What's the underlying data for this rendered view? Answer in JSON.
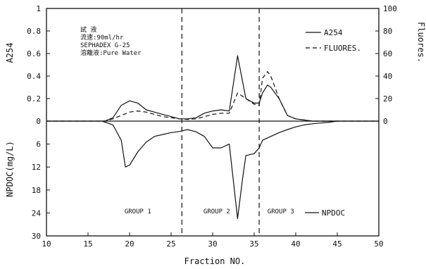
{
  "chart_data": {
    "type": "line",
    "x_label": "Fraction NO.",
    "x_ticks": [
      10,
      15,
      20,
      25,
      30,
      35,
      40,
      45,
      50
    ],
    "x_range": [
      10,
      50
    ],
    "upper": {
      "left_label": "A254",
      "right_label": "Fluores.",
      "left_ticks": [
        "1",
        "0.8",
        "0.6",
        "0.4",
        "0.2",
        "0"
      ],
      "right_ticks": [
        "100",
        "80",
        "60",
        "40",
        "20",
        "0"
      ],
      "left_range": [
        0,
        1
      ],
      "right_range": [
        0,
        100
      ]
    },
    "lower": {
      "left_label": "NPDOC(mg/L)",
      "ticks": [
        "0",
        "6",
        "12",
        "18",
        "24",
        "30"
      ],
      "range": [
        0,
        30
      ]
    },
    "series": [
      {
        "name": "A254",
        "axis": "upper-left",
        "style": "solid",
        "points": [
          [
            10,
            0
          ],
          [
            17,
            0
          ],
          [
            18,
            0.03
          ],
          [
            19,
            0.14
          ],
          [
            20,
            0.18
          ],
          [
            21,
            0.16
          ],
          [
            22,
            0.1
          ],
          [
            23,
            0.08
          ],
          [
            24,
            0.06
          ],
          [
            25,
            0.04
          ],
          [
            26,
            0.02
          ],
          [
            27,
            0.02
          ],
          [
            28,
            0.03
          ],
          [
            29,
            0.07
          ],
          [
            30,
            0.09
          ],
          [
            31,
            0.1
          ],
          [
            32,
            0.09
          ],
          [
            33,
            0.58
          ],
          [
            34,
            0.2
          ],
          [
            35,
            0.16
          ],
          [
            35.6,
            0.16
          ],
          [
            36,
            0.25
          ],
          [
            36.6,
            0.32
          ],
          [
            37,
            0.3
          ],
          [
            38,
            0.2
          ],
          [
            39,
            0.05
          ],
          [
            40,
            0.02
          ],
          [
            41,
            0.01
          ],
          [
            42,
            0
          ],
          [
            50,
            0
          ]
        ]
      },
      {
        "name": "FLUORES.",
        "axis": "upper-right",
        "style": "dashed",
        "points": [
          [
            10,
            0
          ],
          [
            17,
            0
          ],
          [
            18,
            2
          ],
          [
            19,
            5
          ],
          [
            20,
            8
          ],
          [
            21,
            9
          ],
          [
            22,
            8
          ],
          [
            23,
            6
          ],
          [
            24,
            4
          ],
          [
            25,
            3
          ],
          [
            26,
            2
          ],
          [
            27,
            1.5
          ],
          [
            28,
            2
          ],
          [
            29,
            4
          ],
          [
            30,
            6
          ],
          [
            31,
            7
          ],
          [
            32,
            7
          ],
          [
            33,
            25
          ],
          [
            34,
            20
          ],
          [
            35,
            15
          ],
          [
            35.6,
            14
          ],
          [
            36,
            38
          ],
          [
            36.6,
            44
          ],
          [
            37,
            40
          ],
          [
            38,
            20
          ],
          [
            39,
            5
          ],
          [
            40,
            2
          ],
          [
            41,
            1
          ],
          [
            42,
            0
          ],
          [
            50,
            0
          ]
        ]
      },
      {
        "name": "NPDOC",
        "axis": "lower",
        "style": "solid",
        "points": [
          [
            16.7,
            0
          ],
          [
            18,
            1
          ],
          [
            19,
            5
          ],
          [
            19.5,
            12
          ],
          [
            20,
            11.5
          ],
          [
            21,
            8
          ],
          [
            22,
            5.5
          ],
          [
            23,
            4
          ],
          [
            24,
            3.5
          ],
          [
            25,
            3
          ],
          [
            26,
            2.7
          ],
          [
            27,
            2.2
          ],
          [
            28,
            2.8
          ],
          [
            29,
            4
          ],
          [
            30,
            7
          ],
          [
            31,
            7
          ],
          [
            32,
            6
          ],
          [
            33,
            25.5
          ],
          [
            33.6,
            15
          ],
          [
            34,
            9
          ],
          [
            35,
            8.5
          ],
          [
            35.6,
            7
          ],
          [
            36,
            5
          ],
          [
            37,
            4
          ],
          [
            38,
            3
          ],
          [
            39,
            2.2
          ],
          [
            40,
            1.5
          ],
          [
            41,
            1
          ],
          [
            42,
            0.7
          ],
          [
            43,
            0.5
          ],
          [
            44,
            0.3
          ],
          [
            45,
            0
          ]
        ]
      }
    ],
    "dividers_x": [
      26.3,
      35.6
    ],
    "groups": [
      {
        "label": "GROUP 1",
        "x": 21
      },
      {
        "label": "GROUP 2",
        "x": 30.5
      },
      {
        "label": "GROUP 3",
        "x": 38.2
      }
    ],
    "annotation_lines": [
      "試 液",
      "流速:90ml/hr",
      "SEPHADEX G-25",
      "溶離液:Pure Water"
    ],
    "legend": [
      {
        "label": "A254",
        "style": "solid"
      },
      {
        "label": "FLUORES.",
        "style": "dashed"
      }
    ],
    "lower_legend": {
      "label": "NPDOC",
      "style": "solid"
    }
  }
}
